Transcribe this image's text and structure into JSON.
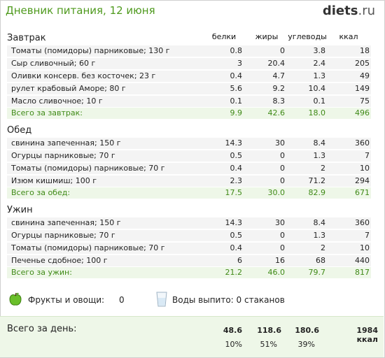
{
  "header": {
    "title": "Дневник питания, 12 июня",
    "logo_main": "diets",
    "logo_tld": ".ru"
  },
  "columns": {
    "protein": "белки",
    "fat": "жиры",
    "carbs": "углеводы",
    "kcal": "ккал"
  },
  "meals": [
    {
      "title": "Завтрак",
      "items": [
        {
          "name": "Томаты (помидоры) парниковые; 130 г",
          "p": "0.8",
          "f": "0",
          "c": "3.8",
          "k": "18"
        },
        {
          "name": "Сыр сливочный; 60 г",
          "p": "3",
          "f": "20.4",
          "c": "2.4",
          "k": "205"
        },
        {
          "name": "Оливки консерв. без косточек; 23 г",
          "p": "0.4",
          "f": "4.7",
          "c": "1.3",
          "k": "49"
        },
        {
          "name": "рулет крабовый Аморе; 80 г",
          "p": "5.6",
          "f": "9.2",
          "c": "10.4",
          "k": "149"
        },
        {
          "name": "Масло сливочное; 10 г",
          "p": "0.1",
          "f": "8.3",
          "c": "0.1",
          "k": "75"
        }
      ],
      "total": {
        "label": "Всего за завтрак:",
        "p": "9.9",
        "f": "42.6",
        "c": "18.0",
        "k": "496"
      }
    },
    {
      "title": "Обед",
      "items": [
        {
          "name": "свинина запеченная; 150 г",
          "p": "14.3",
          "f": "30",
          "c": "8.4",
          "k": "360"
        },
        {
          "name": "Огурцы парниковые; 70 г",
          "p": "0.5",
          "f": "0",
          "c": "1.3",
          "k": "7"
        },
        {
          "name": "Томаты (помидоры) парниковые; 70 г",
          "p": "0.4",
          "f": "0",
          "c": "2",
          "k": "10"
        },
        {
          "name": "Изюм кишмиш; 100 г",
          "p": "2.3",
          "f": "0",
          "c": "71.2",
          "k": "294"
        }
      ],
      "total": {
        "label": "Всего за обед:",
        "p": "17.5",
        "f": "30.0",
        "c": "82.9",
        "k": "671"
      }
    },
    {
      "title": "Ужин",
      "items": [
        {
          "name": "свинина запеченная; 150 г",
          "p": "14.3",
          "f": "30",
          "c": "8.4",
          "k": "360"
        },
        {
          "name": "Огурцы парниковые; 70 г",
          "p": "0.5",
          "f": "0",
          "c": "1.3",
          "k": "7"
        },
        {
          "name": "Томаты (помидоры) парниковые; 70 г",
          "p": "0.4",
          "f": "0",
          "c": "2",
          "k": "10"
        },
        {
          "name": "Печенье сдобное; 100 г",
          "p": "6",
          "f": "16",
          "c": "68",
          "k": "440"
        }
      ],
      "total": {
        "label": "Всего за ужин:",
        "p": "21.2",
        "f": "46.0",
        "c": "79.7",
        "k": "817"
      }
    }
  ],
  "extras": {
    "fruits_label": "Фрукты и овощи:",
    "fruits_value": "0",
    "water_label": "Воды выпито: 0 стаканов",
    "apple_icon": "apple-icon",
    "glass_icon": "water-glass-icon"
  },
  "day_total": {
    "label": "Всего за день:",
    "p": "48.6",
    "f": "118.6",
    "c": "180.6",
    "k": "1984 ккал",
    "p_pct": "10%",
    "f_pct": "51%",
    "c_pct": "39%"
  },
  "colors": {
    "accent_green": "#4f9a1e",
    "total_green": "#3f8a17",
    "total_bg": "#eef7e8",
    "row_bg": "#f4f4f4"
  }
}
